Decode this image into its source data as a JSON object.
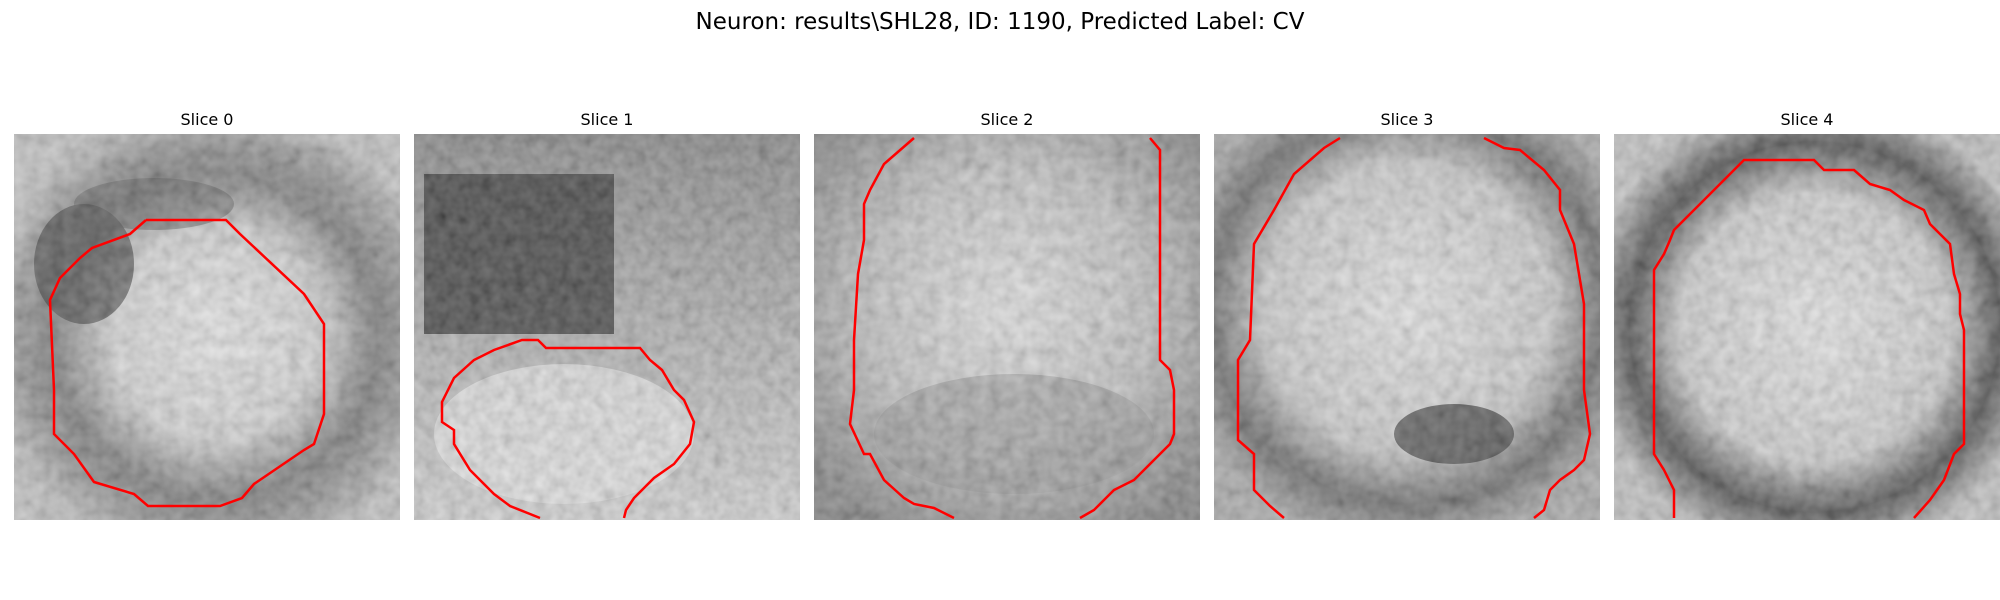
{
  "title": "Neuron: results\\SHL28, ID: 1190, Predicted Label: CV",
  "slices": [
    {
      "label": "Slice 0"
    },
    {
      "label": "Slice 1"
    },
    {
      "label": "Slice 2"
    },
    {
      "label": "Slice 3"
    },
    {
      "label": "Slice 4"
    }
  ],
  "colors": {
    "contour": "#ff0000",
    "background": "#ffffff"
  }
}
